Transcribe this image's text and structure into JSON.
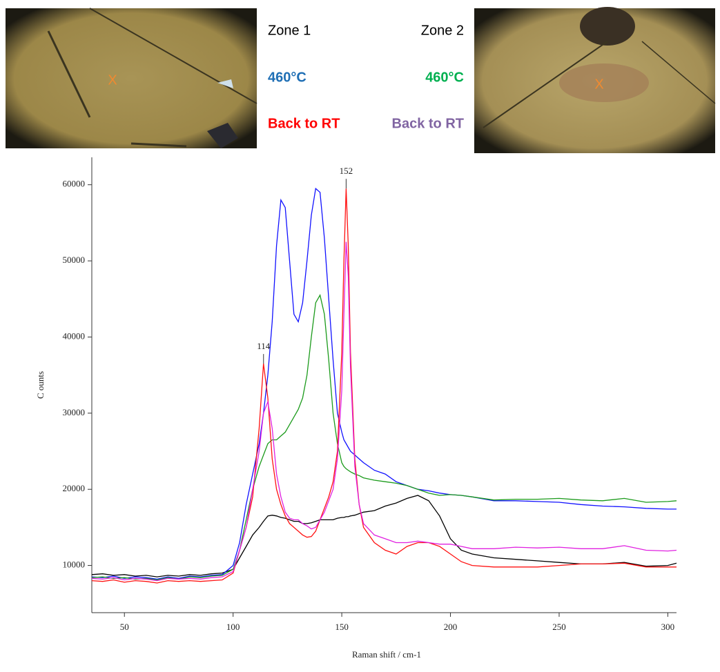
{
  "photos": [
    {
      "marker": "X"
    },
    {
      "marker": "X"
    }
  ],
  "chart_data": {
    "type": "line",
    "zones": [
      {
        "title": "Zone 1",
        "heated": "460°C",
        "heated_color": "#1f6fb5",
        "cooled": "Back to RT",
        "cooled_color": "#ff0000"
      },
      {
        "title": "Zone 2",
        "heated": "460°C",
        "heated_color": "#00b050",
        "cooled": "Back to RT",
        "cooled_color": "#8064a2"
      }
    ],
    "x_label": "Raman shift / cm-1",
    "y_label": "C ounts",
    "xlim": [
      35,
      304
    ],
    "ylim": [
      3800,
      63600
    ],
    "xticks": [
      50,
      100,
      150,
      200,
      250,
      300
    ],
    "yticks": [
      10000,
      20000,
      30000,
      40000,
      50000,
      60000
    ],
    "annotations": [
      {
        "label": "114",
        "x": 114,
        "y": 36500
      },
      {
        "label": "152",
        "x": 152,
        "y": 59500
      }
    ],
    "x": [
      35,
      40,
      45,
      50,
      55,
      60,
      65,
      70,
      75,
      80,
      85,
      90,
      95,
      100,
      103,
      106,
      109,
      112,
      114,
      116,
      118,
      120,
      122,
      124,
      126,
      128,
      130,
      132,
      134,
      136,
      138,
      140,
      142,
      144,
      146,
      148,
      150,
      151,
      152,
      153,
      154,
      156,
      158,
      160,
      165,
      170,
      175,
      180,
      185,
      190,
      195,
      200,
      205,
      210,
      220,
      230,
      240,
      250,
      260,
      270,
      280,
      290,
      300,
      304
    ],
    "series": [
      {
        "color": "#000000",
        "values": [
          8800,
          8900,
          8700,
          8800,
          8600,
          8700,
          8500,
          8700,
          8600,
          8800,
          8700,
          8900,
          9000,
          9500,
          11000,
          12500,
          14000,
          15000,
          15800,
          16500,
          16600,
          16500,
          16300,
          16200,
          16000,
          15800,
          15800,
          15500,
          15500,
          15600,
          15800,
          16000,
          16000,
          16000,
          16000,
          16200,
          16300,
          16300,
          16400,
          16400,
          16500,
          16600,
          16800,
          17000,
          17200,
          17800,
          18200,
          18800,
          19200,
          18500,
          16500,
          13500,
          12000,
          11500,
          11000,
          10800,
          10600,
          10400,
          10200,
          10200,
          10400,
          9900,
          10000,
          10300
        ]
      },
      {
        "color": "#1010ff",
        "values": [
          8500,
          8400,
          8600,
          8300,
          8500,
          8400,
          8200,
          8500,
          8300,
          8600,
          8500,
          8700,
          8800,
          10000,
          13000,
          18000,
          22000,
          26000,
          30000,
          35000,
          42000,
          52000,
          58000,
          57000,
          50000,
          43000,
          42000,
          44500,
          50000,
          56000,
          59500,
          59000,
          53000,
          45000,
          37000,
          30000,
          27500,
          26500,
          26000,
          25500,
          25000,
          24500,
          24000,
          23500,
          22500,
          22000,
          21000,
          20500,
          20000,
          19800,
          19500,
          19300,
          19200,
          19000,
          18500,
          18500,
          18400,
          18300,
          18000,
          17800,
          17700,
          17500,
          17400,
          17400
        ]
      },
      {
        "color": "#1a9a1a",
        "values": [
          8400,
          8500,
          8300,
          8400,
          8200,
          8300,
          8100,
          8400,
          8200,
          8500,
          8400,
          8600,
          8700,
          9500,
          12000,
          16000,
          20000,
          23000,
          24500,
          26000,
          26500,
          26500,
          27000,
          27500,
          28500,
          29500,
          30500,
          32000,
          35000,
          40000,
          44500,
          45500,
          43000,
          37000,
          30000,
          26000,
          23500,
          23000,
          22700,
          22500,
          22300,
          22000,
          21800,
          21500,
          21200,
          21000,
          20800,
          20500,
          20000,
          19500,
          19200,
          19300,
          19200,
          19000,
          18600,
          18700,
          18700,
          18800,
          18600,
          18500,
          18800,
          18300,
          18400,
          18500
        ]
      },
      {
        "color": "#ff1010",
        "values": [
          8000,
          7900,
          8100,
          7800,
          8000,
          7900,
          7700,
          8000,
          7900,
          8000,
          7900,
          8000,
          8100,
          9000,
          12000,
          15000,
          19000,
          28000,
          36500,
          32000,
          24000,
          20000,
          18000,
          16500,
          15500,
          15000,
          14500,
          14000,
          13700,
          13800,
          14500,
          16000,
          17500,
          19000,
          21000,
          25000,
          38000,
          50000,
          59500,
          52000,
          38000,
          24000,
          18000,
          15000,
          13000,
          12000,
          11500,
          12500,
          13000,
          13000,
          12500,
          11500,
          10500,
          10000,
          9800,
          9800,
          9800,
          10000,
          10200,
          10200,
          10300,
          9800,
          9800,
          9800
        ]
      },
      {
        "color": "#e020e0",
        "values": [
          8300,
          8200,
          8400,
          8100,
          8300,
          8200,
          8000,
          8300,
          8200,
          8300,
          8200,
          8400,
          8500,
          9200,
          12000,
          15000,
          20000,
          25000,
          30000,
          31500,
          28000,
          22000,
          19000,
          17000,
          16200,
          16000,
          16000,
          15500,
          15200,
          14800,
          15000,
          16000,
          17000,
          18500,
          20000,
          24000,
          33000,
          43000,
          52500,
          48000,
          36000,
          23000,
          18000,
          15500,
          14000,
          13500,
          13000,
          13000,
          13200,
          13000,
          12800,
          12800,
          12500,
          12200,
          12200,
          12400,
          12300,
          12400,
          12200,
          12200,
          12600,
          12000,
          11900,
          12000
        ]
      }
    ]
  }
}
